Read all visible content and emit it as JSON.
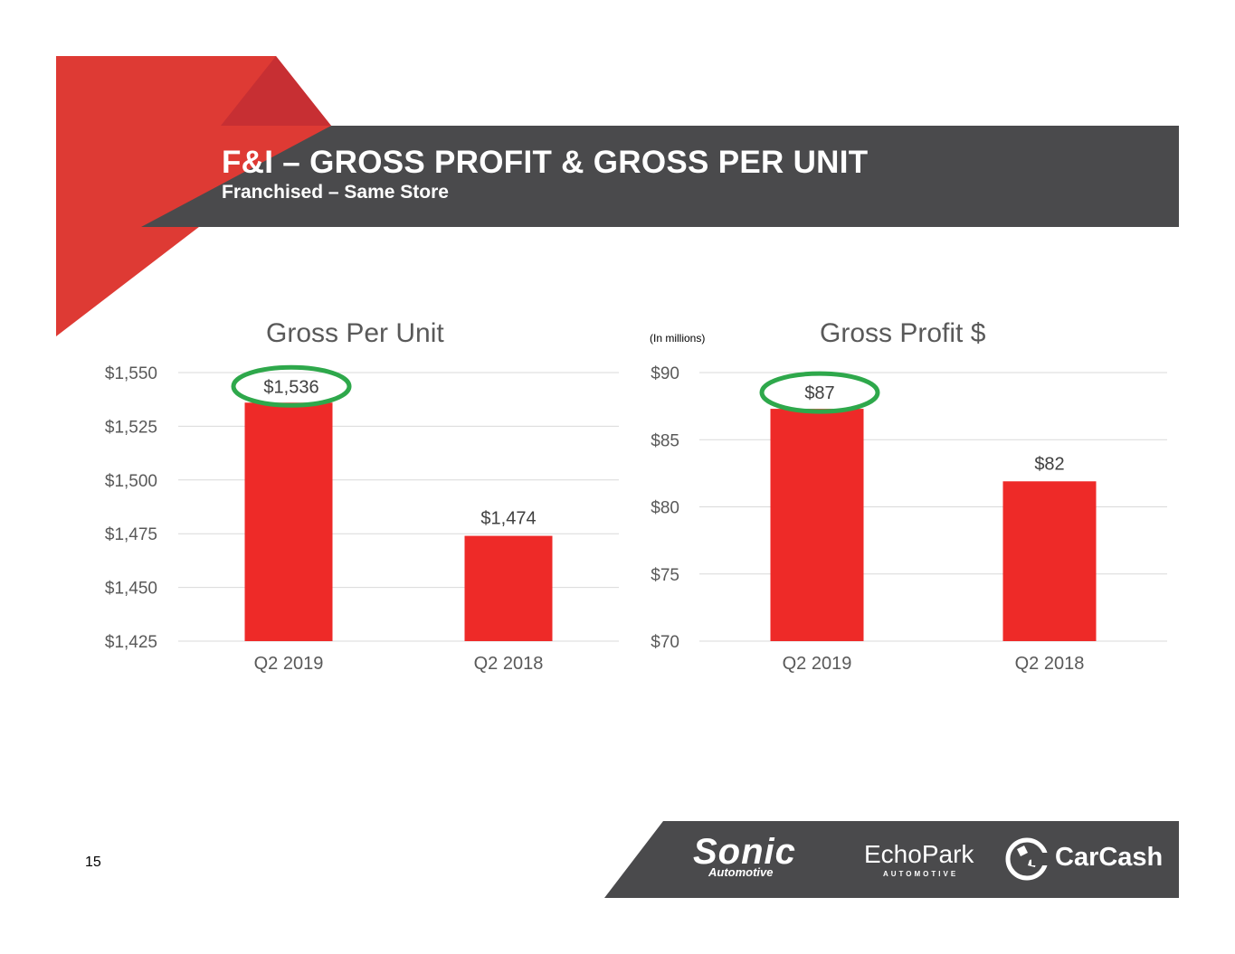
{
  "header": {
    "title": "F&I – GROSS PROFIT & GROSS PER UNIT",
    "subtitle": "Franchised – Same Store"
  },
  "colors": {
    "bar": "#EE2A28",
    "highlight_ring": "#2EA84B",
    "banner": "#4A4A4C",
    "accent": "#DE3A34",
    "gridline": "#D9D9D9",
    "axis_text": "#595959"
  },
  "chart_data": [
    {
      "type": "bar",
      "title": "Gross Per Unit",
      "categories": [
        "Q2 2019",
        "Q2 2018"
      ],
      "values": [
        1536,
        1474
      ],
      "data_labels": [
        "$1,536",
        "$1,474"
      ],
      "ylim": [
        1425,
        1550
      ],
      "yticks": [
        1425,
        1450,
        1475,
        1500,
        1525,
        1550
      ],
      "ytick_labels": [
        "$1,425",
        "$1,450",
        "$1,475",
        "$1,500",
        "$1,525",
        "$1,550"
      ],
      "highlighted": "Q2 2019",
      "grid": true,
      "legend": "none"
    },
    {
      "type": "bar",
      "title": "Gross Profit $",
      "units_note": "(In millions)",
      "categories": [
        "Q2 2019",
        "Q2 2018"
      ],
      "values": [
        87.3,
        81.9
      ],
      "data_labels": [
        "$87",
        "$82"
      ],
      "ylim": [
        70,
        90
      ],
      "yticks": [
        70,
        75,
        80,
        85,
        90
      ],
      "ytick_labels": [
        "$70",
        "$75",
        "$80",
        "$85",
        "$90"
      ],
      "highlighted": "Q2 2019",
      "grid": true,
      "legend": "none"
    }
  ],
  "footer": {
    "page_number": "15",
    "logos": {
      "sonic": "Sonic",
      "sonic_sub": "Automotive",
      "echopark": "EchoPark",
      "echopark_sub": "AUTOMOTIVE",
      "carcash": "CarCash"
    }
  }
}
